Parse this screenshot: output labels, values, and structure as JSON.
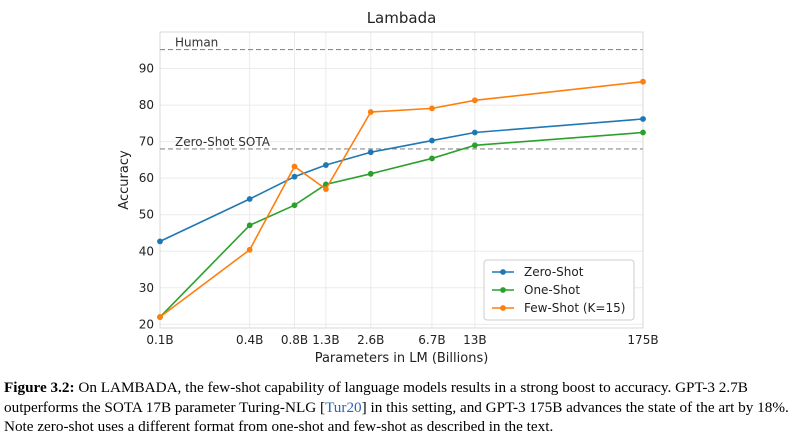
{
  "chart_data": {
    "type": "line",
    "title": "Lambada",
    "xlabel": "Parameters in LM (Billions)",
    "ylabel": "Accuracy",
    "categories": [
      "0.1B",
      "0.4B",
      "0.8B",
      "1.3B",
      "2.6B",
      "6.7B",
      "13B",
      "175B"
    ],
    "x_log_values": [
      0.1,
      0.4,
      0.8,
      1.3,
      2.6,
      6.7,
      13,
      175
    ],
    "yticks": [
      20,
      30,
      40,
      50,
      60,
      70,
      80,
      90
    ],
    "ylim": [
      19,
      100
    ],
    "grid": true,
    "legend_position": "lower-right",
    "series": [
      {
        "name": "Zero-Shot",
        "color": "#1f77b4",
        "values": [
          42.7,
          54.3,
          60.4,
          63.6,
          67.1,
          70.3,
          72.5,
          76.2
        ]
      },
      {
        "name": "One-Shot",
        "color": "#2ca02c",
        "values": [
          22.0,
          47.1,
          52.6,
          58.3,
          61.2,
          65.4,
          69.0,
          72.5
        ]
      },
      {
        "name": "Few-Shot (K=15)",
        "color": "#ff7f0e",
        "values": [
          22.0,
          40.4,
          63.2,
          57.0,
          78.1,
          79.1,
          81.3,
          86.4
        ]
      }
    ],
    "reference_lines": [
      {
        "label": "Human",
        "value": 95.2
      },
      {
        "label": "Zero-Shot SOTA",
        "value": 68.0
      }
    ]
  },
  "caption": {
    "label": "Figure 3.2:",
    "text_before_cite": " On LAMBADA, the few-shot capability of language models results in a strong boost to accuracy. GPT-3 2.7B outperforms the SOTA 17B parameter Turing-NLG [",
    "cite": "Tur20",
    "text_after_cite": "] in this setting, and GPT-3 175B advances the state of the art by 18%. Note zero-shot uses a different format from one-shot and few-shot as described in the text."
  }
}
